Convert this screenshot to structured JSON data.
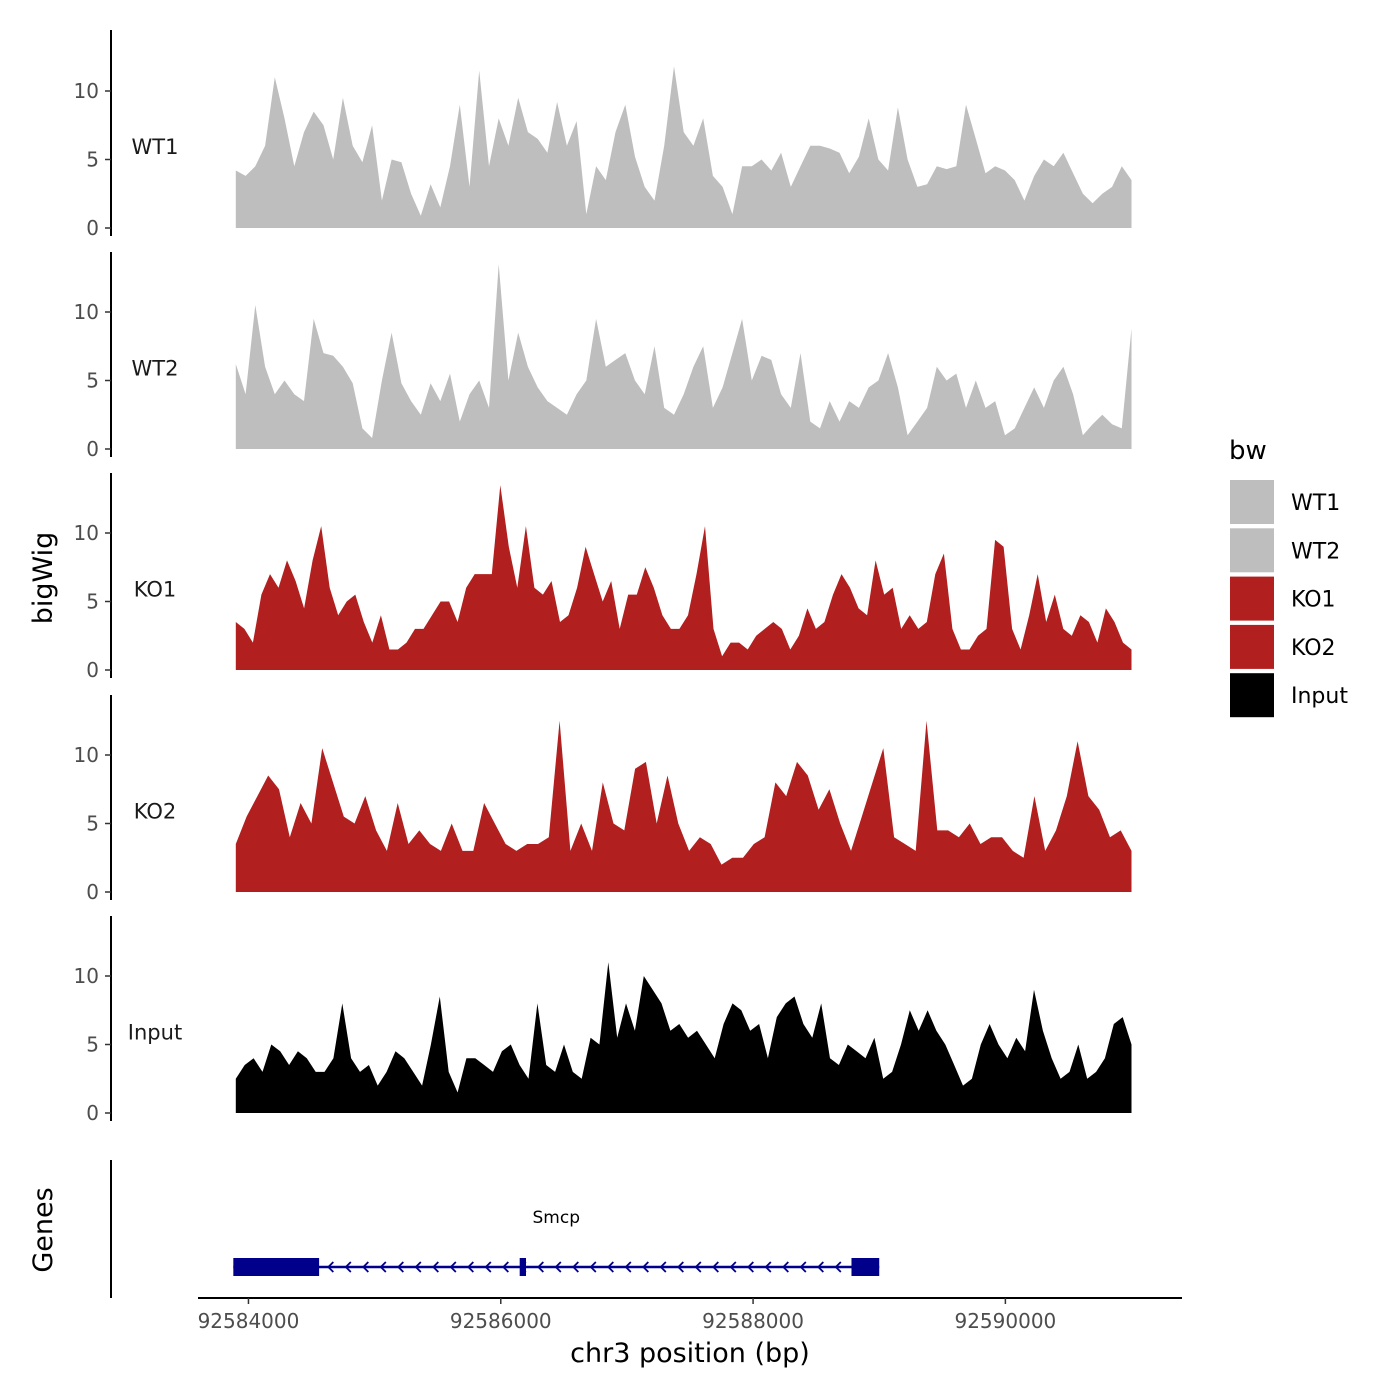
{
  "chart_data": {
    "type": "area",
    "title": "",
    "ylabel": "bigWig",
    "xlabel": "chr3 position (bp)",
    "genes_label": "Genes",
    "xlim": [
      92583600,
      92591400
    ],
    "xticks": [
      92584000,
      92586000,
      92588000,
      92590000
    ],
    "xtick_labels": [
      "92584000",
      "92586000",
      "92588000",
      "92590000"
    ],
    "ylim": [
      0,
      14
    ],
    "yticks": [
      0,
      5,
      10
    ],
    "ytick_labels": [
      "0",
      "5",
      "10"
    ],
    "x_start": 92583900,
    "x_end": 92591000,
    "series": [
      {
        "name": "WT1",
        "color": "#bebebe",
        "values": [
          4.2,
          3.8,
          4.5,
          6,
          11,
          8,
          4.5,
          7,
          8.5,
          7.5,
          5,
          9.5,
          6,
          4.8,
          7.5,
          2,
          5,
          4.8,
          2.5,
          0.9,
          3.2,
          1.5,
          4.5,
          9,
          3,
          11.5,
          4.5,
          8,
          6,
          9.5,
          7,
          6.5,
          5.5,
          9.2,
          6,
          7.8,
          1,
          4.5,
          3.5,
          7,
          9,
          5.2,
          3,
          2,
          6,
          11.8,
          7,
          6,
          8,
          3.8,
          3,
          1,
          4.5,
          4.5,
          5,
          4.2,
          5.5,
          3,
          4.5,
          6,
          6,
          5.8,
          5.5,
          4,
          5.2,
          8,
          5,
          4.2,
          8.8,
          5,
          3,
          3.2,
          4.5,
          4.3,
          4.5,
          9,
          6.5,
          4,
          4.5,
          4.2,
          3.5,
          2,
          3.8,
          5,
          4.5,
          5.5,
          4,
          2.5,
          1.8,
          2.5,
          3,
          4.5,
          3.5
        ]
      },
      {
        "name": "WT2",
        "color": "#bebebe",
        "values": [
          6.2,
          4,
          10.5,
          6,
          4,
          5,
          4,
          3.5,
          9.5,
          7,
          6.8,
          6,
          4.8,
          1.5,
          0.8,
          5,
          8.5,
          4.8,
          3.5,
          2.5,
          4.8,
          3.5,
          5.5,
          2,
          4,
          5,
          3,
          13.5,
          5,
          8.5,
          6,
          4.5,
          3.5,
          3,
          2.5,
          4,
          5,
          9.5,
          6,
          6.5,
          7,
          5,
          4,
          7.5,
          3,
          2.5,
          4,
          6,
          7.5,
          3,
          4.5,
          7,
          9.5,
          5,
          6.8,
          6.5,
          4,
          3,
          7,
          2,
          1.5,
          3.5,
          2,
          3.5,
          3,
          4.5,
          5,
          7,
          4.5,
          1,
          2,
          3,
          6,
          5,
          5.5,
          3,
          5,
          3,
          3.5,
          1,
          1.5,
          3,
          4.5,
          3,
          5,
          6,
          4,
          1,
          1.8,
          2.5,
          1.8,
          1.5,
          8.8
        ]
      },
      {
        "name": "KO1",
        "color": "#b21f1f",
        "values": [
          3.5,
          3,
          2,
          5.5,
          7,
          6,
          8,
          6.5,
          4.5,
          8,
          10.5,
          6,
          4,
          5,
          5.5,
          3.5,
          2,
          4,
          1.5,
          1.5,
          2,
          3,
          3,
          4,
          5,
          5,
          3.5,
          6,
          7,
          7,
          7,
          13.5,
          9,
          6,
          10.5,
          6,
          5.5,
          6.5,
          3.5,
          4,
          6,
          9,
          7,
          5,
          6.5,
          3,
          5.5,
          5.5,
          7.5,
          6,
          4,
          3,
          3,
          4,
          7,
          10.5,
          3,
          1,
          2,
          2,
          1.5,
          2.5,
          3,
          3.5,
          3,
          1.5,
          2.5,
          4.5,
          3,
          3.5,
          5.5,
          7,
          6,
          4.5,
          4,
          8,
          5.5,
          6,
          3,
          4,
          3,
          3.5,
          7,
          8.5,
          3,
          1.5,
          1.5,
          2.5,
          3,
          9.5,
          9,
          3,
          1.5,
          4,
          7,
          3.5,
          5.5,
          3,
          2.5,
          4,
          3.5,
          2,
          4.5,
          3.5,
          2,
          1.5
        ]
      },
      {
        "name": "KO2",
        "color": "#b21f1f",
        "values": [
          3.5,
          5.5,
          7,
          8.5,
          7.5,
          4,
          6.5,
          5,
          10.5,
          8,
          5.5,
          5,
          7,
          4.5,
          3,
          6.5,
          3.5,
          4.5,
          3.5,
          3,
          5,
          3,
          3,
          6.5,
          5,
          3.5,
          3,
          3.5,
          3.5,
          4,
          12.5,
          3,
          5,
          3,
          8,
          5,
          4.5,
          9,
          9.5,
          5,
          8.5,
          5,
          3,
          4,
          3.5,
          2,
          2.5,
          2.5,
          3.5,
          4,
          8,
          7,
          9.5,
          8.5,
          6,
          7.5,
          5,
          3,
          5.5,
          8,
          10.5,
          4,
          3.5,
          3,
          12.5,
          4.5,
          4.5,
          4,
          5,
          3.5,
          4,
          4,
          3,
          2.5,
          7,
          3,
          4.5,
          7,
          11,
          7,
          6,
          4,
          4.5,
          3
        ]
      },
      {
        "name": "Input",
        "color": "#000000",
        "values": [
          2.5,
          3.5,
          4,
          3,
          5,
          4.5,
          3.5,
          4.5,
          4,
          3,
          3,
          4,
          8,
          4,
          3,
          3.5,
          2,
          3,
          4.5,
          4,
          3,
          2,
          5,
          8.5,
          3,
          1.5,
          4,
          4,
          3.5,
          3,
          4.5,
          5,
          3.5,
          2.5,
          8,
          3.5,
          3,
          5,
          3,
          2.5,
          5.5,
          5,
          11,
          5.5,
          8,
          6,
          10,
          9,
          8,
          6,
          6.5,
          5.5,
          6,
          5,
          4,
          6.5,
          8,
          7.5,
          6,
          6.5,
          4,
          7,
          8,
          8.5,
          6.5,
          5.5,
          8,
          4,
          3.5,
          5,
          4.5,
          4,
          5.5,
          2.5,
          3,
          5,
          7.5,
          6,
          7.5,
          6,
          5,
          3.5,
          2,
          2.5,
          5,
          6.5,
          5,
          4,
          5.5,
          4.5,
          9,
          6,
          4,
          2.5,
          3,
          5,
          2.5,
          3,
          4,
          6.5,
          7,
          5
        ]
      }
    ],
    "gene": {
      "name": "Smcp",
      "start": 92583880,
      "end": 92589000,
      "strand": "-",
      "color": "#00008b",
      "exons": [
        [
          92583880,
          92584560
        ],
        [
          92586150,
          92586200
        ],
        [
          92588780,
          92589000
        ]
      ]
    },
    "legend": {
      "title": "bw",
      "position": "right",
      "entries": [
        {
          "label": "WT1",
          "color": "#bebebe"
        },
        {
          "label": "WT2",
          "color": "#bebebe"
        },
        {
          "label": "KO1",
          "color": "#b21f1f"
        },
        {
          "label": "KO2",
          "color": "#b21f1f"
        },
        {
          "label": "Input",
          "color": "#000000"
        }
      ]
    }
  }
}
